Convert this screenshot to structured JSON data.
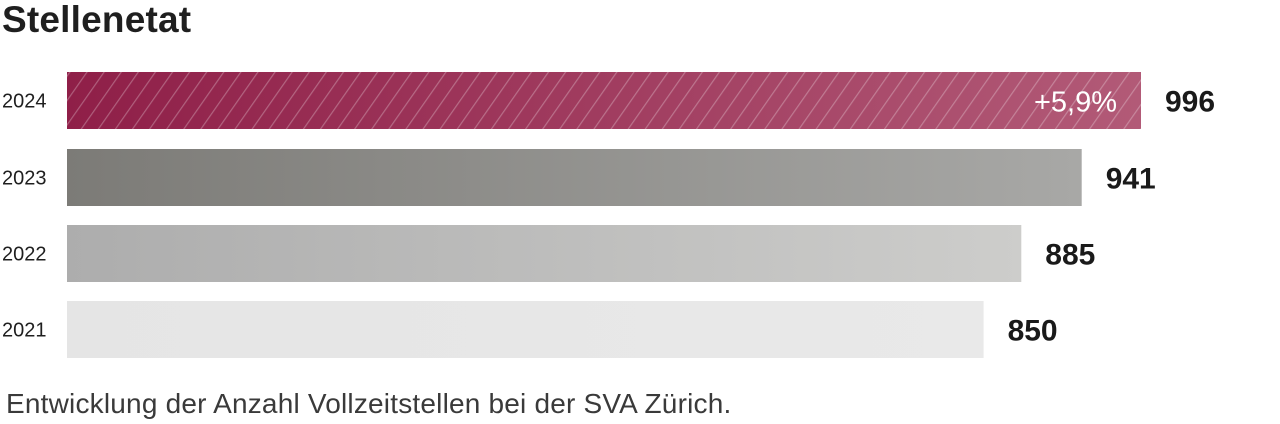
{
  "chart_data": {
    "type": "bar",
    "orientation": "horizontal",
    "title": "Stellenetat",
    "caption": "Entwicklung der Anzahl Vollzeitstellen bei der SVA Zürich.",
    "categories": [
      "2024",
      "2023",
      "2022",
      "2021"
    ],
    "values": [
      996,
      941,
      885,
      850
    ],
    "value_labels": [
      "996",
      "941",
      "885",
      "850"
    ],
    "annotations": [
      {
        "category": "2024",
        "text": "+5,9%"
      }
    ],
    "xlim": [
      0,
      996
    ],
    "grid": false,
    "legend": "none",
    "colors": {
      "2024": [
        "#8f1f48",
        "#b25a77"
      ],
      "2023": [
        "#7c7b77",
        "#a8a8a6"
      ],
      "2022": [
        "#adadad",
        "#cdcdcb"
      ],
      "2021": [
        "#e5e5e5",
        "#e9e9e9"
      ]
    },
    "hatched": [
      "2024"
    ]
  }
}
